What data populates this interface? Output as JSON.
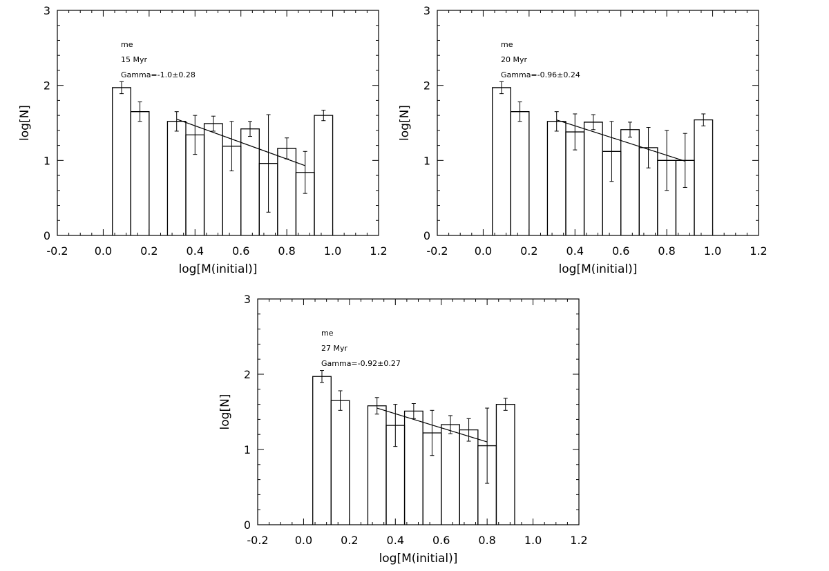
{
  "chart_data": [
    {
      "type": "bar",
      "title": "",
      "xlabel": "log[M(initial)]",
      "ylabel": "log[N]",
      "xlim": [
        -0.2,
        1.2
      ],
      "ylim": [
        0,
        3
      ],
      "xticks": [
        "-0.2",
        "0.0",
        "0.2",
        "0.4",
        "0.6",
        "0.8",
        "1.0",
        "1.2"
      ],
      "yticks": [
        "0",
        "1",
        "2",
        "3"
      ],
      "grid": false,
      "annotations": [
        "me",
        "15 Myr",
        "Gamma=-1.0±0.28"
      ],
      "histogram": {
        "bins": [
          {
            "x0": 0.04,
            "x1": 0.12,
            "value": 1.97,
            "err": 0.08
          },
          {
            "x0": 0.12,
            "x1": 0.2,
            "value": 1.65,
            "err": 0.13
          },
          {
            "x0": 0.28,
            "x1": 0.36,
            "value": 1.52,
            "err": 0.13
          },
          {
            "x0": 0.36,
            "x1": 0.44,
            "value": 1.34,
            "err": 0.26
          },
          {
            "x0": 0.44,
            "x1": 0.52,
            "value": 1.49,
            "err": 0.1
          },
          {
            "x0": 0.52,
            "x1": 0.6,
            "value": 1.19,
            "err": 0.33
          },
          {
            "x0": 0.6,
            "x1": 0.68,
            "value": 1.42,
            "err": 0.1
          },
          {
            "x0": 0.68,
            "x1": 0.76,
            "value": 0.96,
            "err": 0.65
          },
          {
            "x0": 0.76,
            "x1": 0.84,
            "value": 1.16,
            "err": 0.14
          },
          {
            "x0": 0.84,
            "x1": 0.92,
            "value": 0.84,
            "err": 0.28
          },
          {
            "x0": 0.92,
            "x1": 1.0,
            "value": 1.6,
            "err": 0.07
          }
        ]
      },
      "fit_line": {
        "x": [
          0.32,
          0.88
        ],
        "y": [
          1.55,
          0.93
        ]
      }
    },
    {
      "type": "bar",
      "title": "",
      "xlabel": "log[M(initial)]",
      "ylabel": "log[N]",
      "xlim": [
        -0.2,
        1.2
      ],
      "ylim": [
        0,
        3
      ],
      "xticks": [
        "-0.2",
        "0.0",
        "0.2",
        "0.4",
        "0.6",
        "0.8",
        "1.0",
        "1.2"
      ],
      "yticks": [
        "0",
        "1",
        "2",
        "3"
      ],
      "grid": false,
      "annotations": [
        "me",
        "20 Myr",
        "Gamma=-0.96±0.24"
      ],
      "histogram": {
        "bins": [
          {
            "x0": 0.04,
            "x1": 0.12,
            "value": 1.97,
            "err": 0.08
          },
          {
            "x0": 0.12,
            "x1": 0.2,
            "value": 1.65,
            "err": 0.13
          },
          {
            "x0": 0.28,
            "x1": 0.36,
            "value": 1.52,
            "err": 0.13
          },
          {
            "x0": 0.36,
            "x1": 0.44,
            "value": 1.38,
            "err": 0.24
          },
          {
            "x0": 0.44,
            "x1": 0.52,
            "value": 1.51,
            "err": 0.1
          },
          {
            "x0": 0.52,
            "x1": 0.6,
            "value": 1.12,
            "err": 0.4
          },
          {
            "x0": 0.6,
            "x1": 0.68,
            "value": 1.41,
            "err": 0.1
          },
          {
            "x0": 0.68,
            "x1": 0.76,
            "value": 1.17,
            "err": 0.27
          },
          {
            "x0": 0.76,
            "x1": 0.84,
            "value": 1.0,
            "err": 0.4
          },
          {
            "x0": 0.84,
            "x1": 0.92,
            "value": 1.0,
            "err": 0.36
          },
          {
            "x0": 0.92,
            "x1": 1.0,
            "value": 1.54,
            "err": 0.08
          }
        ]
      },
      "fit_line": {
        "x": [
          0.32,
          0.88
        ],
        "y": [
          1.54,
          0.99
        ]
      }
    },
    {
      "type": "bar",
      "title": "",
      "xlabel": "log[M(initial)]",
      "ylabel": "log[N]",
      "xlim": [
        -0.2,
        1.2
      ],
      "ylim": [
        0,
        3
      ],
      "xticks": [
        "-0.2",
        "0.0",
        "0.2",
        "0.4",
        "0.6",
        "0.8",
        "1.0",
        "1.2"
      ],
      "yticks": [
        "0",
        "1",
        "2",
        "3"
      ],
      "grid": false,
      "annotations": [
        "me",
        "27 Myr",
        "Gamma=-0.92±0.27"
      ],
      "histogram": {
        "bins": [
          {
            "x0": 0.04,
            "x1": 0.12,
            "value": 1.97,
            "err": 0.08
          },
          {
            "x0": 0.12,
            "x1": 0.2,
            "value": 1.65,
            "err": 0.13
          },
          {
            "x0": 0.28,
            "x1": 0.36,
            "value": 1.58,
            "err": 0.11
          },
          {
            "x0": 0.36,
            "x1": 0.44,
            "value": 1.32,
            "err": 0.28
          },
          {
            "x0": 0.44,
            "x1": 0.52,
            "value": 1.51,
            "err": 0.1
          },
          {
            "x0": 0.52,
            "x1": 0.6,
            "value": 1.22,
            "err": 0.3
          },
          {
            "x0": 0.6,
            "x1": 0.68,
            "value": 1.33,
            "err": 0.12
          },
          {
            "x0": 0.68,
            "x1": 0.76,
            "value": 1.26,
            "err": 0.15
          },
          {
            "x0": 0.76,
            "x1": 0.84,
            "value": 1.05,
            "err": 0.5
          },
          {
            "x0": 0.84,
            "x1": 0.92,
            "value": 1.6,
            "err": 0.08
          }
        ]
      },
      "fit_line": {
        "x": [
          0.32,
          0.8
        ],
        "y": [
          1.55,
          1.1
        ]
      }
    }
  ]
}
